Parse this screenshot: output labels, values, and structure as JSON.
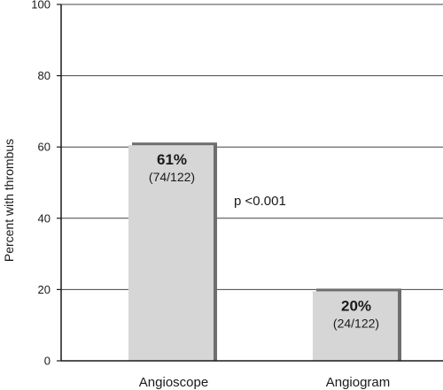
{
  "chart_data": {
    "type": "bar",
    "categories": [
      "Angioscope",
      "Angiogram"
    ],
    "values": [
      61,
      20
    ],
    "data_labels": [
      {
        "percent": "61%",
        "fraction": "(74/122)"
      },
      {
        "percent": "20%",
        "fraction": "(24/122)"
      }
    ],
    "title": "",
    "xlabel": "",
    "ylabel": "Percent with thrombus",
    "ylim": [
      0,
      100
    ],
    "yticks": [
      "0",
      "20",
      "40",
      "60",
      "80",
      "100"
    ],
    "grid": true,
    "annotation": "p <0.001",
    "colors": {
      "bar_fill": "#d6d6d6",
      "bar_shadow": "#6e6e6e",
      "axis": "#1a1a1a",
      "grid": "#444444"
    }
  }
}
